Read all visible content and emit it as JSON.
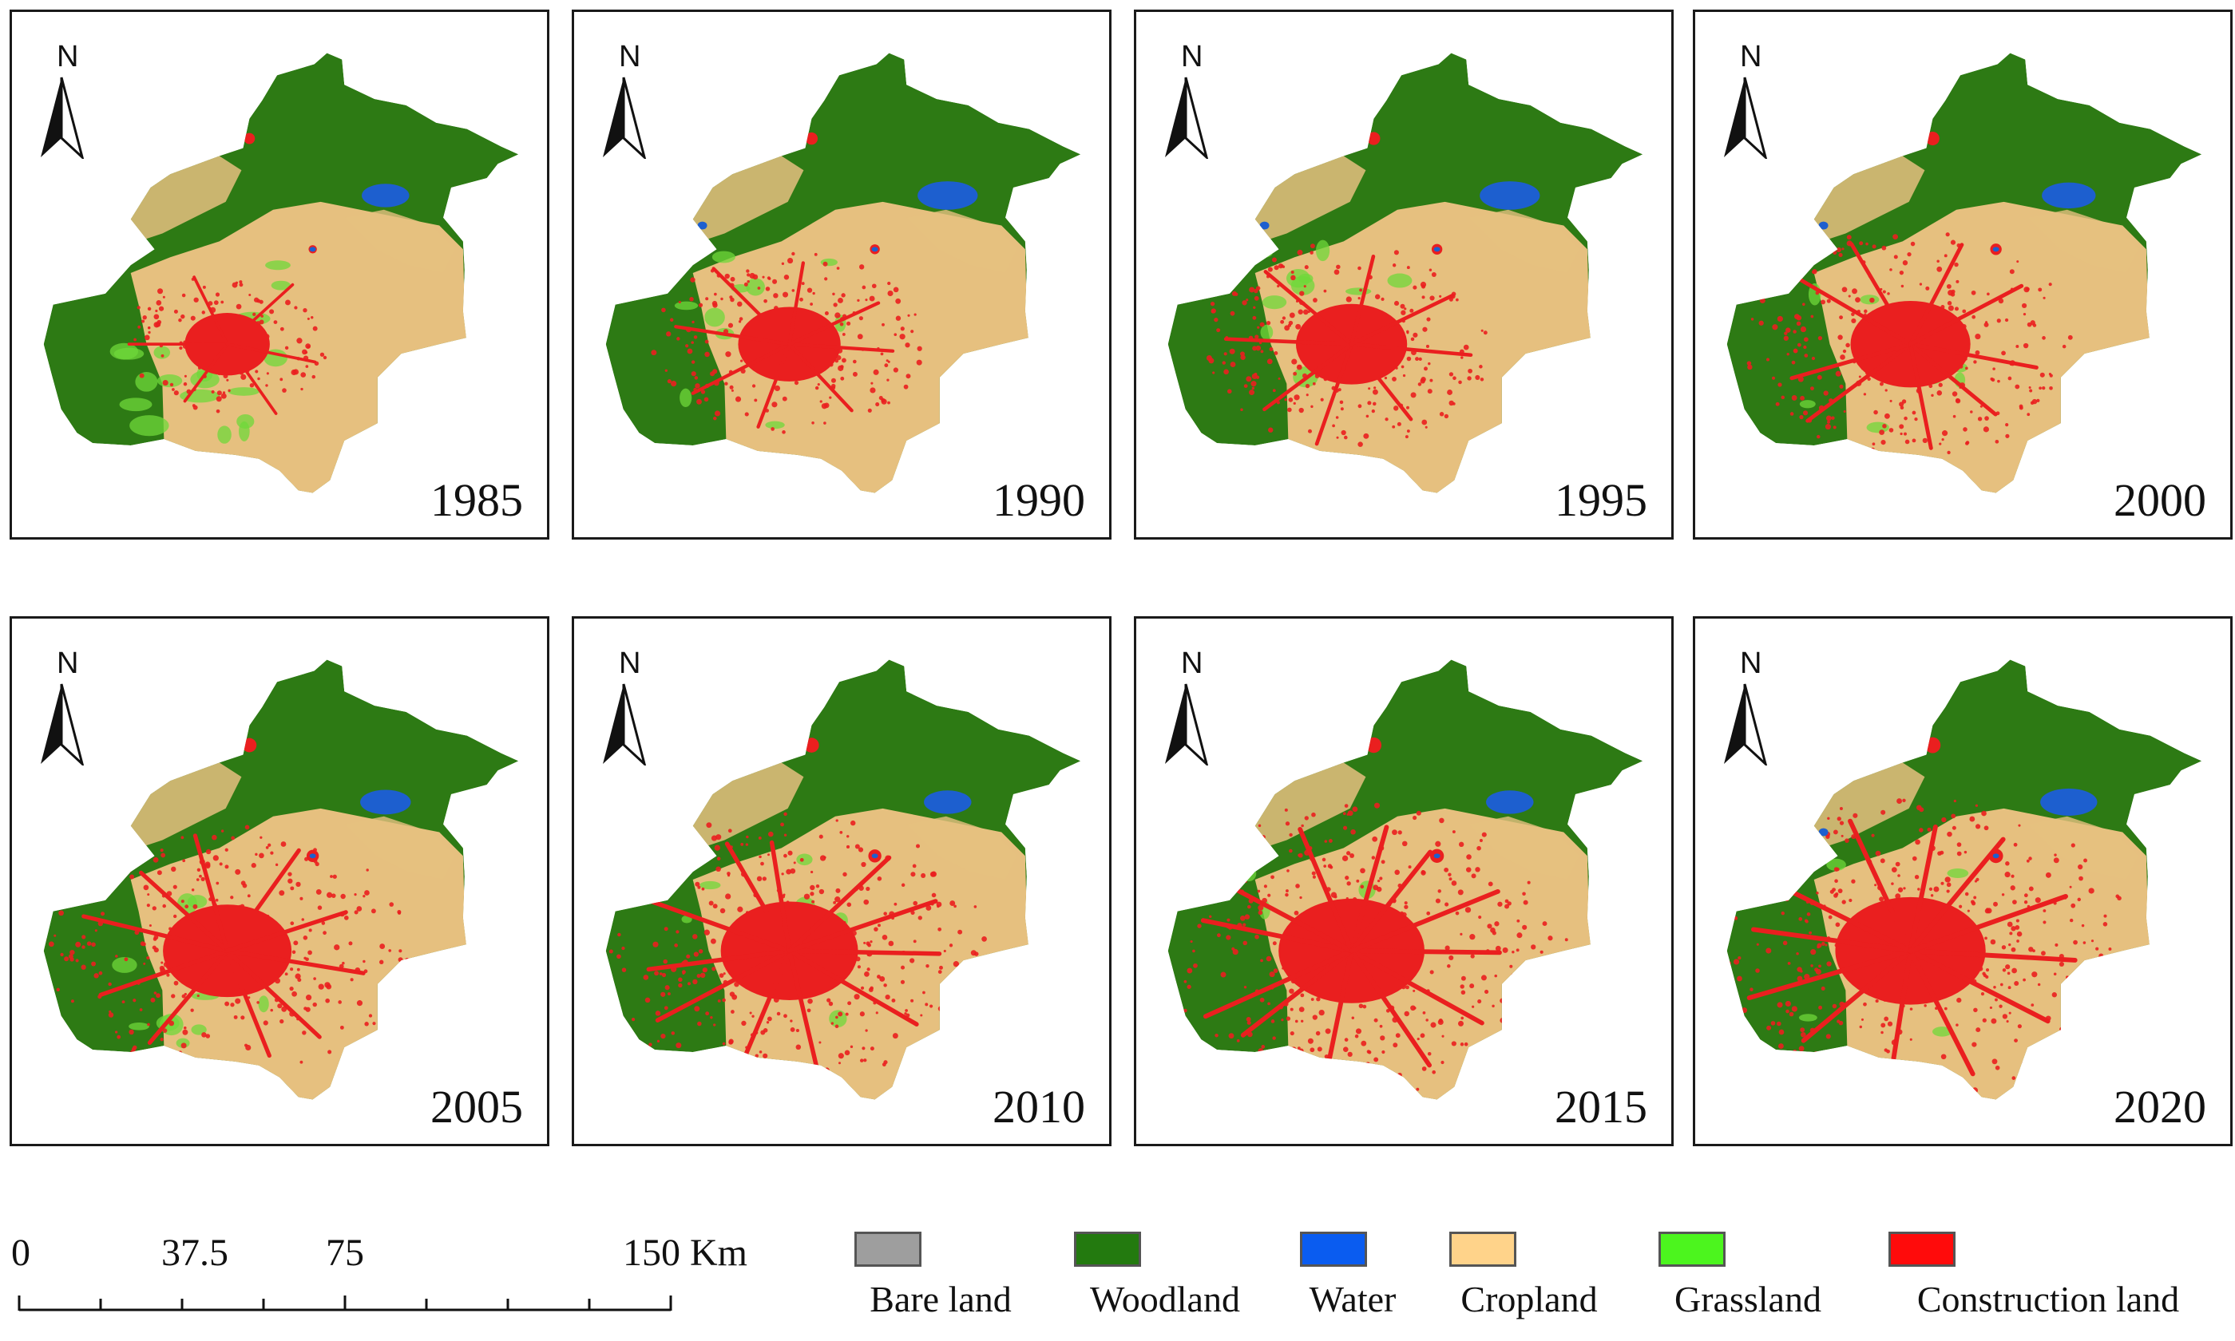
{
  "panels": [
    {
      "year": "1985",
      "urban": 0.25,
      "grass": 0.9,
      "water": 0.6
    },
    {
      "year": "1990",
      "urban": 0.45,
      "grass": 0.2,
      "water": 1.0
    },
    {
      "year": "1995",
      "urban": 0.55,
      "grass": 0.3,
      "water": 1.0
    },
    {
      "year": "2000",
      "urban": 0.65,
      "grass": 0.1,
      "water": 0.8
    },
    {
      "year": "2005",
      "urban": 0.75,
      "grass": 0.4,
      "water": 0.7
    },
    {
      "year": "2010",
      "urban": 0.85,
      "grass": 0.1,
      "water": 0.6
    },
    {
      "year": "2015",
      "urban": 0.95,
      "grass": 0.1,
      "water": 0.6
    },
    {
      "year": "2020",
      "urban": 1.0,
      "grass": 0.1,
      "water": 0.9
    }
  ],
  "north_label": "N",
  "scale": {
    "ticks": [
      "0",
      "37.5",
      "75",
      "150 Km"
    ]
  },
  "legend": [
    {
      "label": "Bare land",
      "color": "#9e9e9e"
    },
    {
      "label": "Woodland",
      "color": "#237a0f"
    },
    {
      "label": "Water",
      "color": "#0a5cf0"
    },
    {
      "label": "Cropland",
      "color": "#ffd38a"
    },
    {
      "label": "Grassland",
      "color": "#4cf51e"
    },
    {
      "label": "Construction land",
      "color": "#ff0b0b"
    }
  ],
  "colors": {
    "woodland": "#2d7a14",
    "cropland": "#e6c07f",
    "construction": "#ea1f1f",
    "water": "#1d5fcf",
    "grassland": "#6fd83a"
  }
}
